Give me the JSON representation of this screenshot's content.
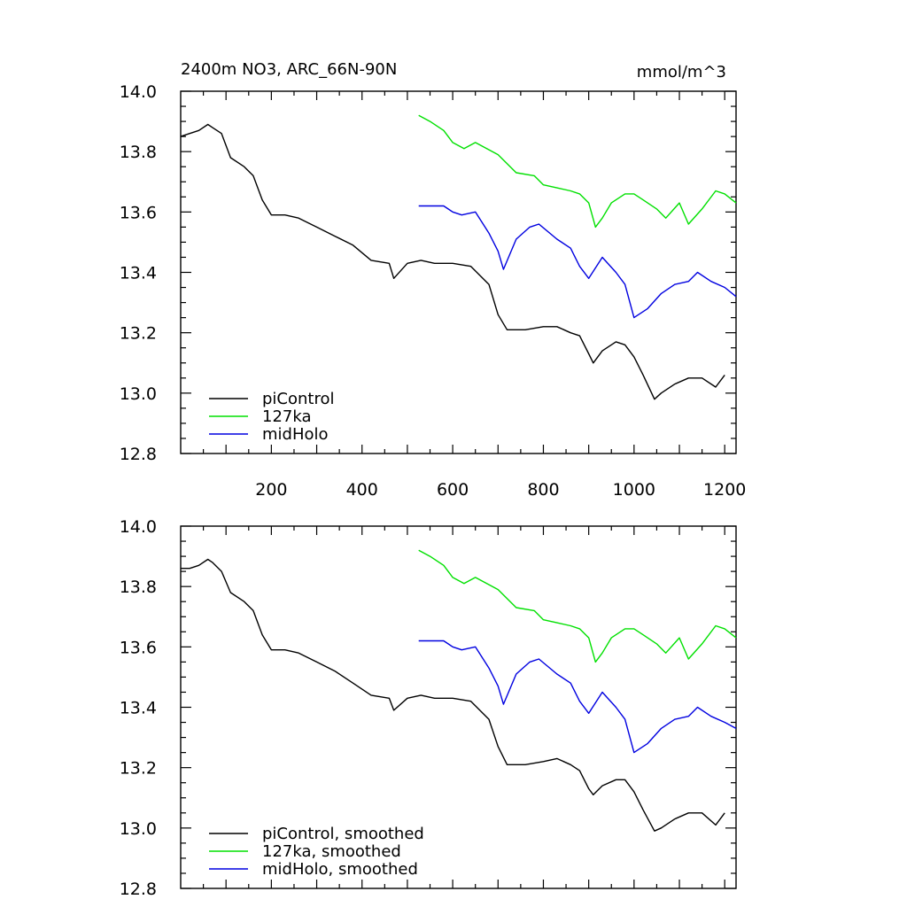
{
  "title": "2400m NO3, ARC_66N-90N",
  "units": "mmol/m^3",
  "colors": {
    "piControl": "#000000",
    "127ka": "#00e000",
    "midHolo": "#0000e0"
  },
  "chart_data": [
    {
      "type": "line",
      "title": "2400m NO3, ARC_66N-90N",
      "units_label": "mmol/m^3",
      "xlim": [
        0,
        1225
      ],
      "ylim": [
        12.8,
        14.0
      ],
      "xticks": [
        200,
        400,
        600,
        800,
        1000,
        1200
      ],
      "xtick_labels": [
        "200",
        "400",
        "600",
        "800",
        "1000",
        "1200"
      ],
      "yticks": [
        12.8,
        13.0,
        13.2,
        13.4,
        13.6,
        13.8,
        14.0
      ],
      "ytick_labels": [
        "12.8",
        "13.0",
        "13.2",
        "13.4",
        "13.6",
        "13.8",
        "14.0"
      ],
      "legend_position": "bottom-left",
      "series": [
        {
          "name": "piControl",
          "color": "#000000",
          "x": [
            0,
            20,
            40,
            60,
            70,
            90,
            110,
            140,
            160,
            180,
            200,
            230,
            260,
            300,
            340,
            380,
            420,
            460,
            470,
            500,
            530,
            560,
            600,
            640,
            680,
            700,
            720,
            760,
            800,
            830,
            860,
            880,
            900,
            910,
            930,
            960,
            980,
            1000,
            1020,
            1045,
            1060,
            1090,
            1120,
            1150,
            1180,
            1200
          ],
          "y": [
            13.85,
            13.86,
            13.87,
            13.89,
            13.88,
            13.86,
            13.78,
            13.75,
            13.72,
            13.64,
            13.59,
            13.59,
            13.58,
            13.55,
            13.52,
            13.49,
            13.44,
            13.43,
            13.38,
            13.43,
            13.44,
            13.43,
            13.43,
            13.42,
            13.36,
            13.26,
            13.21,
            13.21,
            13.22,
            13.22,
            13.2,
            13.19,
            13.13,
            13.1,
            13.14,
            13.17,
            13.16,
            13.12,
            13.06,
            12.98,
            13.0,
            13.03,
            13.05,
            13.05,
            13.02,
            13.06
          ]
        },
        {
          "name": "127ka",
          "color": "#00e000",
          "x": [
            525,
            550,
            580,
            600,
            625,
            650,
            700,
            740,
            780,
            800,
            830,
            860,
            880,
            900,
            915,
            930,
            950,
            980,
            1000,
            1020,
            1050,
            1070,
            1100,
            1120,
            1150,
            1180,
            1200,
            1225
          ],
          "y": [
            13.92,
            13.9,
            13.87,
            13.83,
            13.81,
            13.83,
            13.79,
            13.73,
            13.72,
            13.69,
            13.68,
            13.67,
            13.66,
            13.63,
            13.55,
            13.58,
            13.63,
            13.66,
            13.66,
            13.64,
            13.61,
            13.58,
            13.63,
            13.56,
            13.61,
            13.67,
            13.66,
            13.63
          ]
        },
        {
          "name": "midHolo",
          "color": "#0000e0",
          "x": [
            525,
            550,
            580,
            600,
            620,
            650,
            680,
            700,
            712,
            740,
            770,
            790,
            830,
            860,
            880,
            900,
            930,
            960,
            980,
            1000,
            1030,
            1060,
            1090,
            1120,
            1140,
            1170,
            1200,
            1225
          ],
          "y": [
            13.62,
            13.62,
            13.62,
            13.6,
            13.59,
            13.6,
            13.53,
            13.47,
            13.41,
            13.51,
            13.55,
            13.56,
            13.51,
            13.48,
            13.42,
            13.38,
            13.45,
            13.4,
            13.36,
            13.25,
            13.28,
            13.33,
            13.36,
            13.37,
            13.4,
            13.37,
            13.35,
            13.32
          ]
        }
      ]
    },
    {
      "type": "line",
      "title": "",
      "xlim": [
        0,
        1225
      ],
      "ylim": [
        12.8,
        14.0
      ],
      "yticks": [
        12.8,
        13.0,
        13.2,
        13.4,
        13.6,
        13.8,
        14.0
      ],
      "ytick_labels": [
        "12.8",
        "13.0",
        "13.2",
        "13.4",
        "13.6",
        "13.8",
        "14.0"
      ],
      "legend_position": "bottom-left",
      "series": [
        {
          "name": "piControl, smoothed",
          "color": "#000000",
          "x": [
            0,
            20,
            40,
            60,
            70,
            90,
            110,
            140,
            160,
            180,
            200,
            230,
            260,
            300,
            340,
            380,
            420,
            460,
            470,
            500,
            530,
            560,
            600,
            640,
            680,
            700,
            720,
            760,
            800,
            830,
            860,
            880,
            900,
            910,
            930,
            960,
            980,
            1000,
            1020,
            1045,
            1060,
            1090,
            1120,
            1150,
            1180,
            1200
          ],
          "y": [
            13.86,
            13.86,
            13.87,
            13.89,
            13.88,
            13.85,
            13.78,
            13.75,
            13.72,
            13.64,
            13.59,
            13.59,
            13.58,
            13.55,
            13.52,
            13.48,
            13.44,
            13.43,
            13.39,
            13.43,
            13.44,
            13.43,
            13.43,
            13.42,
            13.36,
            13.27,
            13.21,
            13.21,
            13.22,
            13.23,
            13.21,
            13.19,
            13.13,
            13.11,
            13.14,
            13.16,
            13.16,
            13.12,
            13.06,
            12.99,
            13.0,
            13.03,
            13.05,
            13.05,
            13.01,
            13.05
          ]
        },
        {
          "name": "127ka, smoothed",
          "color": "#00e000",
          "x": [
            525,
            550,
            580,
            600,
            625,
            650,
            700,
            740,
            780,
            800,
            830,
            860,
            880,
            900,
            915,
            930,
            950,
            980,
            1000,
            1020,
            1050,
            1070,
            1100,
            1120,
            1150,
            1180,
            1200,
            1225
          ],
          "y": [
            13.92,
            13.9,
            13.87,
            13.83,
            13.81,
            13.83,
            13.79,
            13.73,
            13.72,
            13.69,
            13.68,
            13.67,
            13.66,
            13.63,
            13.55,
            13.58,
            13.63,
            13.66,
            13.66,
            13.64,
            13.61,
            13.58,
            13.63,
            13.56,
            13.61,
            13.67,
            13.66,
            13.63
          ]
        },
        {
          "name": "midHolo, smoothed",
          "color": "#0000e0",
          "x": [
            525,
            550,
            580,
            600,
            620,
            650,
            680,
            700,
            712,
            740,
            770,
            790,
            830,
            860,
            880,
            900,
            930,
            960,
            980,
            1000,
            1030,
            1060,
            1090,
            1120,
            1140,
            1170,
            1200,
            1225
          ],
          "y": [
            13.62,
            13.62,
            13.62,
            13.6,
            13.59,
            13.6,
            13.53,
            13.47,
            13.41,
            13.51,
            13.55,
            13.56,
            13.51,
            13.48,
            13.42,
            13.38,
            13.45,
            13.4,
            13.36,
            13.25,
            13.28,
            13.33,
            13.36,
            13.37,
            13.4,
            13.37,
            13.35,
            13.33
          ]
        }
      ]
    }
  ]
}
